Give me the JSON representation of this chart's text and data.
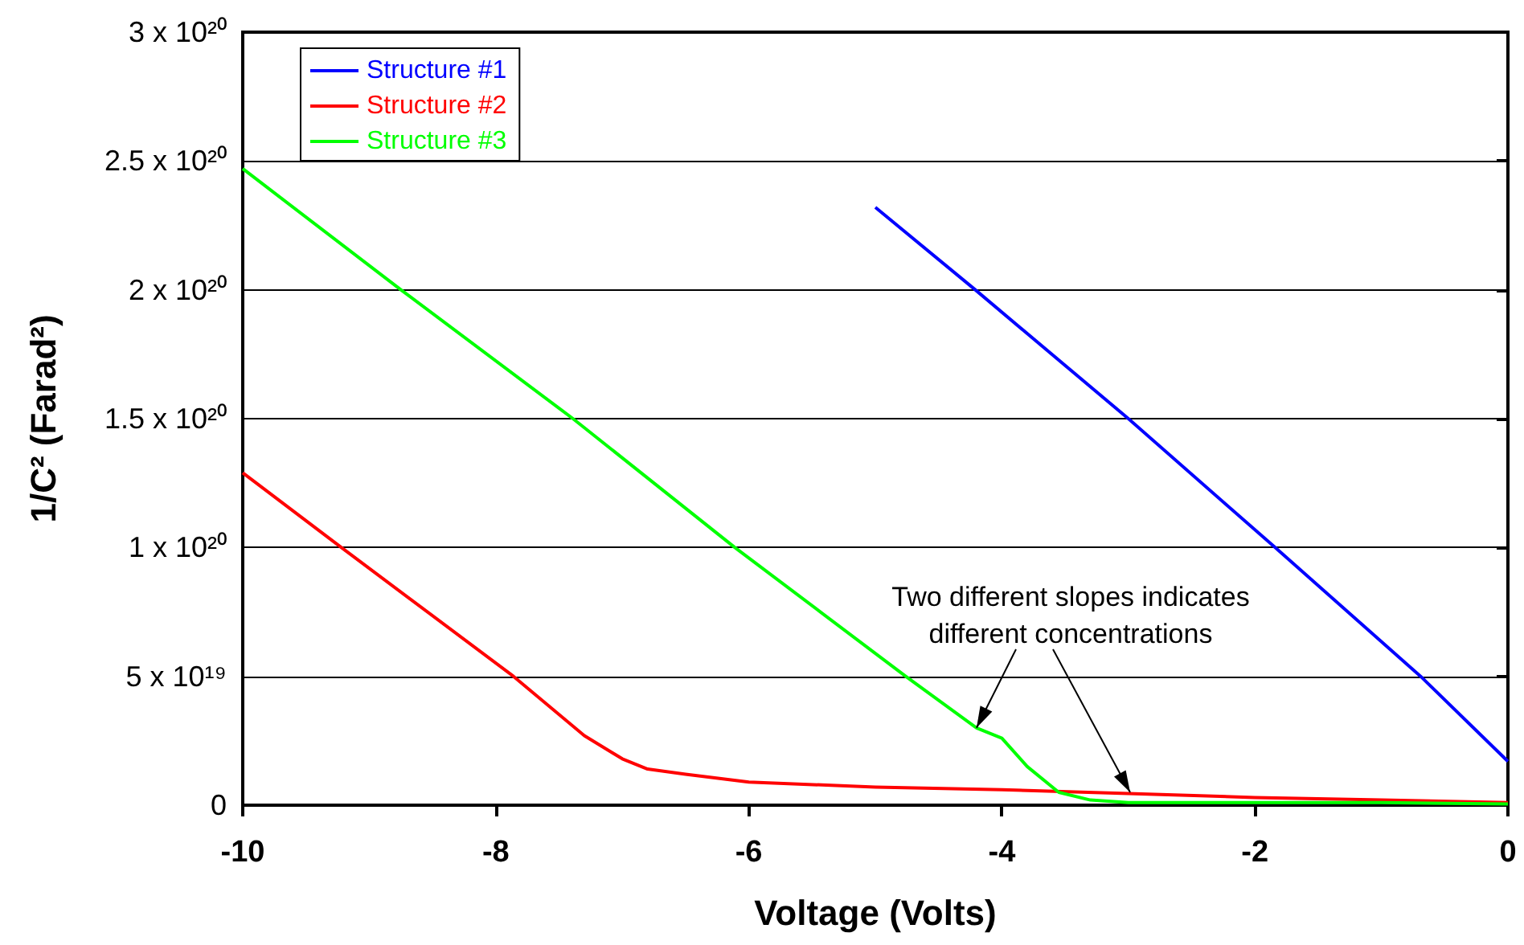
{
  "chart_data": {
    "type": "line",
    "xlabel": "Voltage (Volts)",
    "ylabel": "1/C² (Farad²)",
    "xlim": [
      -10,
      0
    ],
    "xticks": [
      -10,
      -8,
      -6,
      -4,
      -2,
      0
    ],
    "ylim": [
      0,
      3e+20
    ],
    "yticks": [
      {
        "value": 0,
        "label": "0"
      },
      {
        "value": 5e+19,
        "label": "5 x 10¹⁹"
      },
      {
        "value": 1e+20,
        "label": "1 x 10²⁰"
      },
      {
        "value": 1.5e+20,
        "label": "1.5 x 10²⁰"
      },
      {
        "value": 2e+20,
        "label": "2 x 10²⁰"
      },
      {
        "value": 2.5e+20,
        "label": "2.5 x 10²⁰"
      },
      {
        "value": 3e+20,
        "label": "3 x 10²⁰"
      }
    ],
    "grid": "y",
    "legend": "top left",
    "marker": "none",
    "line_style": "solid",
    "annotations": [
      {
        "text": "Two different slopes indicates\ndifferent concentrations",
        "x": -4.2,
        "y": 3e+19
      }
    ],
    "series": [
      {
        "name": "Structure #1",
        "color": "#0000ff",
        "x": [
          -5,
          -4.21,
          -3,
          -1.84,
          -0.69,
          0
        ],
        "values": [
          2.32e+20,
          2e+20,
          1.5e+20,
          1e+20,
          5e+19,
          1.7e+19
        ]
      },
      {
        "name": "Structure #2",
        "color": "#ff0000",
        "x": [
          -10,
          -9.22,
          -7.86,
          -7.3,
          -7,
          -6.8,
          -6.5,
          -6,
          -5,
          -4,
          -3,
          -2,
          -1,
          0
        ],
        "values": [
          1.29e+20,
          1e+20,
          5e+19,
          2.7e+19,
          1.8e+19,
          1.4e+19,
          1.2e+19,
          9e+18,
          7e+18,
          6e+18,
          4.5e+18,
          3e+18,
          2e+18,
          1e+18
        ]
      },
      {
        "name": "Structure #3",
        "color": "#00ff00",
        "x": [
          -10,
          -8.75,
          -7.39,
          -6.11,
          -4.76,
          -4.2,
          -4,
          -3.8,
          -3.55,
          -3.3,
          -3,
          -2,
          -1,
          0
        ],
        "values": [
          2.47e+20,
          2e+20,
          1.5e+20,
          1e+20,
          5e+19,
          3e+19,
          2.6e+19,
          1.5e+19,
          5e+18,
          2e+18,
          1e+18,
          1e+18,
          1e+18,
          5e+17
        ]
      }
    ]
  }
}
